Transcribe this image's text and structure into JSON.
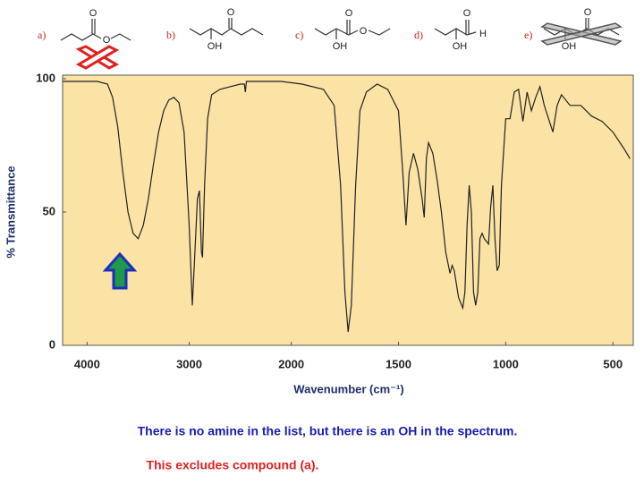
{
  "compounds": [
    {
      "label": "a)",
      "atoms": [
        "O",
        "O"
      ]
    },
    {
      "label": "b)",
      "atoms": [
        "O",
        "OH"
      ]
    },
    {
      "label": "c)",
      "atoms": [
        "O",
        "O",
        "OH"
      ]
    },
    {
      "label": "d)",
      "atoms": [
        "O",
        "H",
        "OH"
      ]
    },
    {
      "label": "e)",
      "atoms": [
        "O",
        "OH"
      ]
    }
  ],
  "chart_data": {
    "type": "line",
    "x_label": "Wavenumber (cm⁻¹)",
    "y_label": "% Transmittance",
    "xlim": [
      4240,
      405
    ],
    "x_scale_break": {
      "at": 2000,
      "factor": 2.1
    },
    "xticks": [
      4000,
      3000,
      2000,
      1500,
      1000,
      500
    ],
    "ylim": [
      0,
      100
    ],
    "yticks": [
      0,
      50,
      100
    ],
    "color": "#222222",
    "x": [
      4240,
      3900,
      3800,
      3750,
      3700,
      3650,
      3600,
      3550,
      3500,
      3450,
      3400,
      3350,
      3300,
      3250,
      3200,
      3150,
      3100,
      3050,
      3000,
      2970,
      2950,
      2920,
      2900,
      2880,
      2870,
      2850,
      2820,
      2780,
      2700,
      2500,
      2460,
      2450,
      2440,
      2100,
      1950,
      1850,
      1800,
      1770,
      1750,
      1735,
      1720,
      1700,
      1680,
      1650,
      1600,
      1550,
      1500,
      1480,
      1465,
      1450,
      1430,
      1410,
      1390,
      1380,
      1370,
      1360,
      1340,
      1320,
      1300,
      1280,
      1260,
      1250,
      1240,
      1220,
      1200,
      1190,
      1180,
      1170,
      1160,
      1150,
      1140,
      1130,
      1120,
      1110,
      1100,
      1080,
      1070,
      1060,
      1050,
      1040,
      1030,
      1020,
      1000,
      980,
      960,
      940,
      920,
      900,
      880,
      860,
      840,
      820,
      800,
      780,
      760,
      740,
      700,
      650,
      600,
      550,
      500,
      450,
      420
    ],
    "values": [
      99,
      99,
      98,
      93,
      82,
      65,
      50,
      42,
      40,
      45,
      55,
      68,
      80,
      88,
      92,
      93,
      91,
      80,
      45,
      15,
      30,
      55,
      58,
      35,
      33,
      60,
      85,
      94,
      96,
      98,
      98,
      95,
      99,
      99,
      98,
      96,
      90,
      60,
      20,
      5,
      15,
      60,
      88,
      95,
      98,
      96,
      88,
      65,
      45,
      65,
      72,
      66,
      55,
      48,
      70,
      76,
      72,
      62,
      50,
      35,
      27,
      30,
      28,
      18,
      14,
      20,
      45,
      60,
      50,
      20,
      15,
      20,
      40,
      42,
      40,
      38,
      52,
      60,
      40,
      28,
      30,
      60,
      85,
      85,
      95,
      96,
      84,
      95,
      88,
      93,
      97,
      90,
      85,
      80,
      90,
      94,
      90,
      90,
      86,
      84,
      80,
      74,
      70
    ]
  },
  "notes": [
    "There is no amine in the list, but there is an OH in the spectrum.",
    "This excludes compound (a)."
  ]
}
